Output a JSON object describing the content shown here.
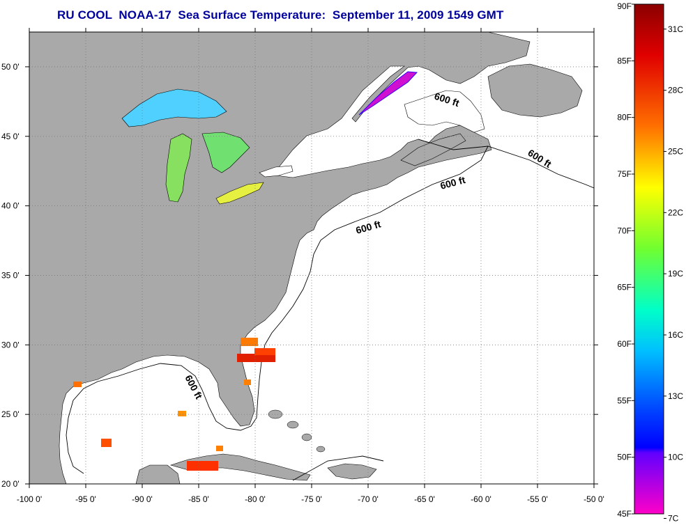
{
  "title": "RU COOL  NOAA-17  Sea Surface Temperature:  September 11, 2009 1549 GMT",
  "map": {
    "lon_range": [
      -100,
      -50
    ],
    "lat_range": [
      20,
      52.5
    ],
    "x_ticks": [
      "-100 0'",
      "-95 0'",
      "-90 0'",
      "-85 0'",
      "-80 0'",
      "-75 0'",
      "-70 0'",
      "-65 0'",
      "-60 0'",
      "-55 0'",
      "-50 0'"
    ],
    "y_ticks": [
      "50 0'",
      "45 0'",
      "40 0'",
      "35 0'",
      "30 0'",
      "25 0'",
      "20 0'"
    ],
    "grid": "dotted",
    "land_color": "#a9a9a9",
    "water_color": "#ffffff",
    "contour_labels": [
      "600 ft",
      "600 ft",
      "600 ft",
      "600 ft",
      "600 ft"
    ]
  },
  "colorbar": {
    "fahrenheit": [
      "90F",
      "85F",
      "80F",
      "75F",
      "70F",
      "65F",
      "60F",
      "55F",
      "50F",
      "45F"
    ],
    "celsius": [
      "31C",
      "28C",
      "25C",
      "22C",
      "19C",
      "16C",
      "13C",
      "10C",
      "7C"
    ],
    "colors_top_to_bottom": [
      "#8b0000",
      "#ff0000",
      "#ff8000",
      "#ffff00",
      "#80ff00",
      "#00ffc0",
      "#00c0ff",
      "#0040ff",
      "#0000ff",
      "#8000ff",
      "#ff00c8"
    ]
  }
}
